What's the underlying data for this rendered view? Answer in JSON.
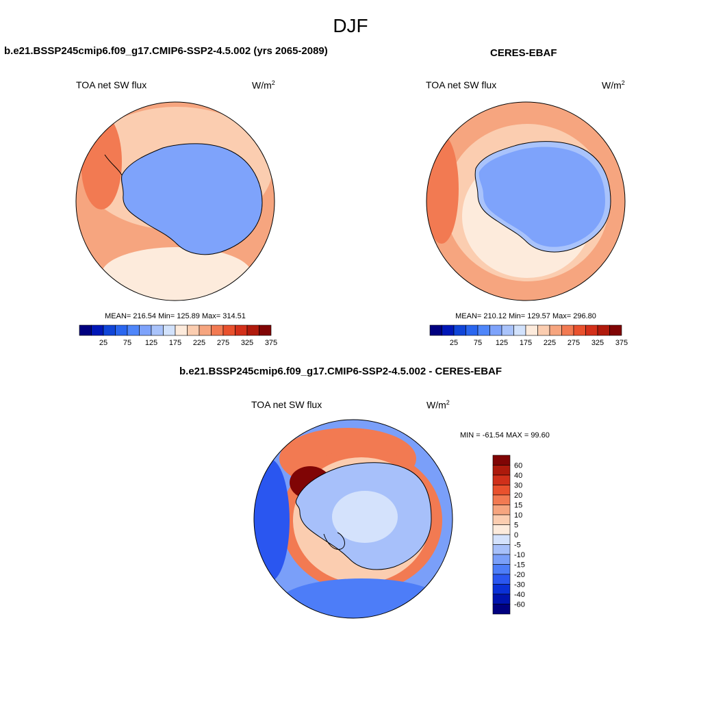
{
  "figure": {
    "title": "DJF",
    "colors": {
      "abs_scale": [
        "#00007f",
        "#0017b7",
        "#1045d8",
        "#2a66ef",
        "#4f86fa",
        "#7ea3fb",
        "#a9c3fb",
        "#d2e2fc",
        "#fdebdc",
        "#fbcdb0",
        "#f6a57f",
        "#f27a52",
        "#e9512d",
        "#d3301a",
        "#b01a0c",
        "#800505"
      ],
      "diff_scale": [
        "#00007f",
        "#0013ad",
        "#0a30d6",
        "#2a56f0",
        "#4d7df8",
        "#7a9ff9",
        "#a7c0fa",
        "#d4e2fc",
        "#fdebdc",
        "#fbcdb0",
        "#f6a57f",
        "#f27a52",
        "#e9512d",
        "#d0301a",
        "#ad1a0c",
        "#800505"
      ],
      "land_outline": "#000000"
    }
  },
  "panels": [
    {
      "title": "b.e21.BSSP245cmip6.f09_g17.CMIP6-SSP2-4.5.002 (yrs 2065-2089)",
      "left_label": "TOA net SW flux",
      "units_base": "W/m",
      "units_exp": "2",
      "stats_text": "MEAN= 216.54  Min= 125.89  Max= 314.51"
    },
    {
      "title": "CERES-EBAF",
      "left_label": "TOA net SW flux",
      "units_base": "W/m",
      "units_exp": "2",
      "stats_text": "MEAN= 210.12  Min= 129.57  Max= 296.80"
    },
    {
      "title": "b.e21.BSSP245cmip6.f09_g17.CMIP6-SSP2-4.5.002 - CERES-EBAF",
      "left_label": "TOA net SW flux",
      "units_base": "W/m",
      "units_exp": "2",
      "stats_text": "MIN = -61.54 MAX =  99.60"
    }
  ],
  "chart_data": [
    {
      "type": "heatmap",
      "projection": "polar-stereographic (south pole)",
      "title": "b.e21.BSSP245cmip6.f09_g17.CMIP6-SSP2-4.5.002 (yrs 2065-2089)",
      "variable": "TOA net SW flux",
      "units": "W/m2",
      "mean": 216.54,
      "min": 125.89,
      "max": 314.51,
      "colorbar_ticks": [
        25,
        75,
        125,
        175,
        225,
        275,
        325,
        375
      ],
      "colorbar_levels": [
        0,
        25,
        50,
        75,
        100,
        125,
        150,
        175,
        200,
        225,
        250,
        275,
        300,
        325,
        350,
        375
      ]
    },
    {
      "type": "heatmap",
      "projection": "polar-stereographic (south pole)",
      "title": "CERES-EBAF",
      "variable": "TOA net SW flux",
      "units": "W/m2",
      "mean": 210.12,
      "min": 129.57,
      "max": 296.8,
      "colorbar_ticks": [
        25,
        75,
        125,
        175,
        225,
        275,
        325,
        375
      ],
      "colorbar_levels": [
        0,
        25,
        50,
        75,
        100,
        125,
        150,
        175,
        200,
        225,
        250,
        275,
        300,
        325,
        350,
        375
      ]
    },
    {
      "type": "heatmap",
      "projection": "polar-stereographic (south pole)",
      "title": "b.e21.BSSP245cmip6.f09_g17.CMIP6-SSP2-4.5.002 - CERES-EBAF",
      "variable": "TOA net SW flux",
      "units": "W/m2",
      "min": -61.54,
      "max": 99.6,
      "colorbar_ticks": [
        60,
        40,
        30,
        20,
        15,
        10,
        5,
        0,
        -5,
        -10,
        -15,
        -20,
        -30,
        -40,
        -60
      ]
    }
  ]
}
